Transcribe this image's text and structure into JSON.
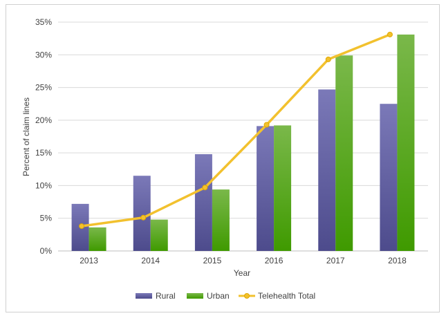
{
  "chart_data": {
    "type": "bar",
    "title": "",
    "xlabel": "Year",
    "ylabel": "Percent of claim lines",
    "categories": [
      "2013",
      "2014",
      "2015",
      "2016",
      "2017",
      "2018"
    ],
    "ylim": [
      0,
      35
    ],
    "yticks": [
      "0%",
      "5%",
      "10%",
      "15%",
      "20%",
      "25%",
      "30%",
      "35%"
    ],
    "ytick_values": [
      0,
      5,
      10,
      15,
      20,
      25,
      30,
      35
    ],
    "grid": true,
    "legend_position": "bottom",
    "series": [
      {
        "name": "Rural",
        "kind": "bar",
        "color": "#6b69a8",
        "values": [
          7.2,
          11.5,
          14.8,
          19.1,
          24.7,
          22.5
        ]
      },
      {
        "name": "Urban",
        "kind": "bar",
        "color": "#5aab1c",
        "values": [
          3.6,
          4.8,
          9.4,
          19.2,
          29.9,
          33.1
        ]
      },
      {
        "name": "Telehealth Total",
        "kind": "line",
        "color": "#f2c12e",
        "values": [
          3.8,
          5.1,
          9.7,
          19.3,
          29.3,
          33.1
        ]
      }
    ]
  }
}
